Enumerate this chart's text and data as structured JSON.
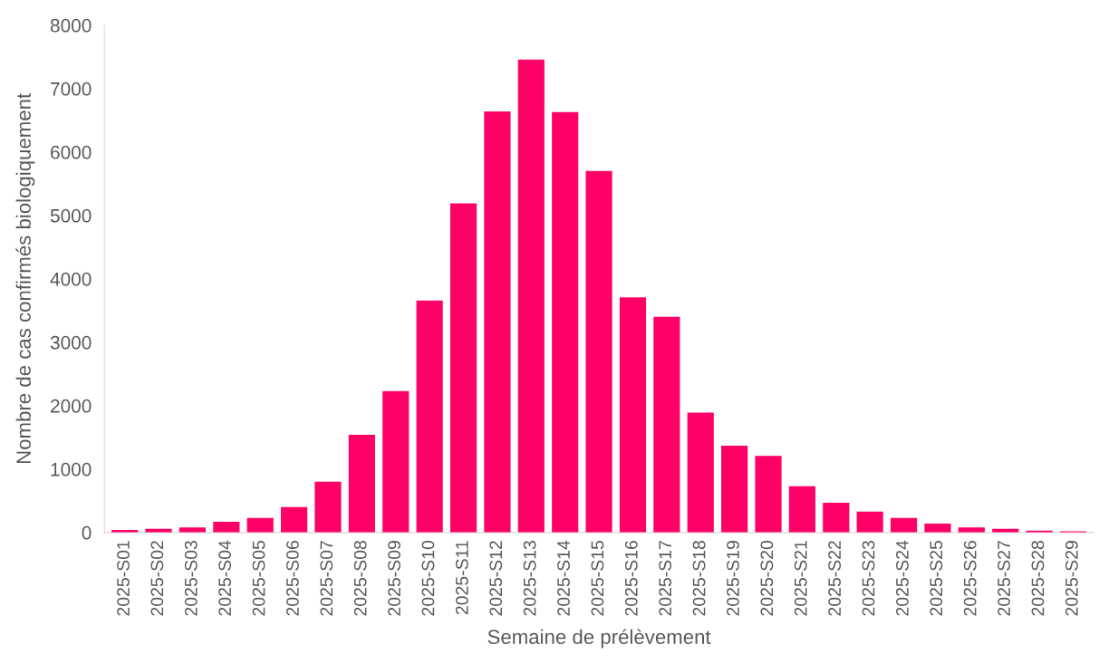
{
  "chart_data": {
    "type": "bar",
    "xlabel": "Semaine de prélèvement",
    "ylabel": "Nombre de cas confirmés biologiquement",
    "categories": [
      "2025-S01",
      "2025-S02",
      "2025-S03",
      "2025-S04",
      "2025-S05",
      "2025-S06",
      "2025-S07",
      "2025-S08",
      "2025-S09",
      "2025-S10",
      "2025-S11",
      "2025-S12",
      "2025-S13",
      "2025-S14",
      "2025-S15",
      "2025-S16",
      "2025-S17",
      "2025-S18",
      "2025-S19",
      "2025-S20",
      "2025-S21",
      "2025-S22",
      "2025-S23",
      "2025-S24",
      "2025-S25",
      "2025-S26",
      "2025-S27",
      "2025-S28",
      "2025-S29"
    ],
    "values": [
      40,
      60,
      80,
      170,
      230,
      400,
      800,
      1540,
      2230,
      3660,
      5190,
      6640,
      7460,
      6630,
      5700,
      3710,
      3400,
      1890,
      1370,
      1210,
      730,
      470,
      330,
      230,
      140,
      80,
      60,
      30,
      20
    ],
    "color": "#ff0066",
    "ylim": [
      0,
      8000
    ],
    "yticks": [
      0,
      1000,
      2000,
      3000,
      4000,
      5000,
      6000,
      7000,
      8000
    ],
    "grid": false
  }
}
